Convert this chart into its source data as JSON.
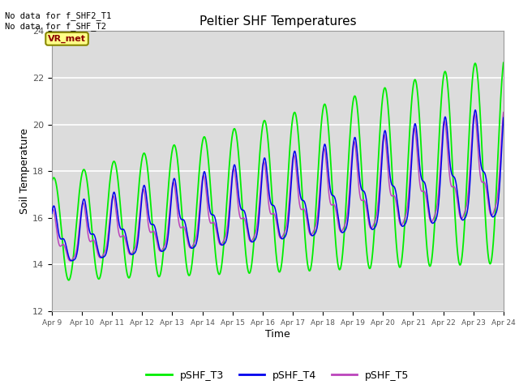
{
  "title": "Peltier SHF Temperatures",
  "xlabel": "Time",
  "ylabel": "Soil Temperature",
  "ylim": [
    12,
    24
  ],
  "yticks": [
    12,
    14,
    16,
    18,
    20,
    22,
    24
  ],
  "xlim_start": 0,
  "xlim_end": 15,
  "xtick_labels": [
    "Apr 9",
    "Apr 10",
    "Apr 11",
    "Apr 12",
    "Apr 13",
    "Apr 14",
    "Apr 15",
    "Apr 16",
    "Apr 17",
    "Apr 18",
    "Apr 19",
    "Apr 20",
    "Apr 21",
    "Apr 22",
    "Apr 23",
    "Apr 24"
  ],
  "color_T3": "#00EE00",
  "color_T4": "#0000EE",
  "color_T5": "#BB44BB",
  "legend_labels": [
    "pSHF_T3",
    "pSHF_T4",
    "pSHF_T5"
  ],
  "annotation_text": "No data for f_SHF2_T1\nNo data for f_SHF_T2",
  "vr_met_text": "VR_met",
  "bg_light": "#DCDCDC",
  "bg_dark": "#C8C8C8",
  "linewidth_T3": 1.3,
  "linewidth_T45": 1.1
}
